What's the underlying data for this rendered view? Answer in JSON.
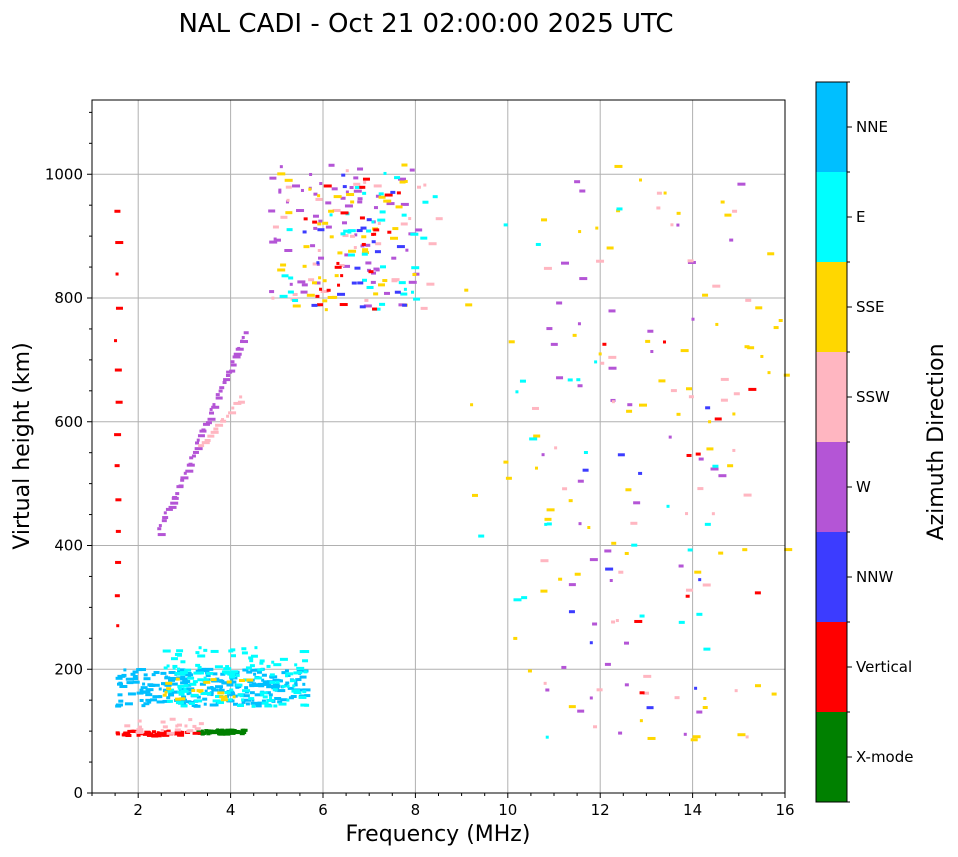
{
  "chart_data": {
    "type": "scatter",
    "title": "NAL CADI - Oct 21 02:00:00 2025 UTC",
    "xlabel": "Frequency (MHz)",
    "ylabel": "Virtual height (km)",
    "xlim": [
      1,
      16
    ],
    "ylim": [
      0,
      1120
    ],
    "xticks": [
      2,
      4,
      6,
      8,
      10,
      12,
      14,
      16
    ],
    "yticks": [
      0,
      200,
      400,
      600,
      800,
      1000
    ],
    "grid": true,
    "colorbar": {
      "title": "Azimuth Direction",
      "categories": [
        {
          "name": "X-mode",
          "color": "#008000"
        },
        {
          "name": "Vertical",
          "color": "#ff0000"
        },
        {
          "name": "NNW",
          "color": "#3c3cff"
        },
        {
          "name": "W",
          "color": "#b455d6"
        },
        {
          "name": "SSW",
          "color": "#ffb6c1"
        },
        {
          "name": "SSE",
          "color": "#ffd700"
        },
        {
          "name": "E",
          "color": "#00ffff"
        },
        {
          "name": "NNE",
          "color": "#00bfff"
        }
      ]
    },
    "regions": [
      {
        "name": "E-layer X-mode",
        "direction": "X-mode",
        "x": [
          3.2,
          4.3
        ],
        "y": [
          95,
          102
        ],
        "count": 60
      },
      {
        "name": "E-layer vertical",
        "direction": "Vertical",
        "x": [
          1.5,
          3.2
        ],
        "y": [
          92,
          100
        ],
        "count": 50
      },
      {
        "name": "E-layer mixed",
        "direction": "SSW",
        "x": [
          1.6,
          3.4
        ],
        "y": [
          95,
          120
        ],
        "count": 20
      },
      {
        "name": "F-layer trace NNE",
        "direction": "NNE",
        "x": [
          1.5,
          5.6
        ],
        "y": [
          140,
          200
        ],
        "count": 240
      },
      {
        "name": "F-layer trace E",
        "direction": "E",
        "x": [
          2.5,
          5.6
        ],
        "y": [
          140,
          235
        ],
        "count": 130
      },
      {
        "name": "F-layer mixed",
        "direction": "SSE",
        "x": [
          2.5,
          4.5
        ],
        "y": [
          150,
          195
        ],
        "count": 20
      },
      {
        "name": "Spread F W",
        "direction": "W",
        "x": [
          4.8,
          8
        ],
        "y": [
          780,
          1015
        ],
        "count": 70
      },
      {
        "name": "Spread F SSW",
        "direction": "SSW",
        "x": [
          4.8,
          8.6
        ],
        "y": [
          780,
          1015
        ],
        "count": 35
      },
      {
        "name": "Spread F SSE",
        "direction": "SSE",
        "x": [
          5,
          8
        ],
        "y": [
          780,
          1015
        ],
        "count": 45
      },
      {
        "name": "Spread F E",
        "direction": "E",
        "x": [
          5,
          8.4
        ],
        "y": [
          780,
          1015
        ],
        "count": 40
      },
      {
        "name": "Spread F Vertical",
        "direction": "Vertical",
        "x": [
          5.5,
          7.8
        ],
        "y": [
          780,
          1000
        ],
        "count": 25
      },
      {
        "name": "Spread F NNW",
        "direction": "NNW",
        "x": [
          5.5,
          7.8
        ],
        "y": [
          780,
          1000
        ],
        "count": 20
      },
      {
        "name": "Scattered high freq SSE",
        "direction": "SSE",
        "x": [
          8.8,
          16
        ],
        "y": [
          80,
          1020
        ],
        "count": 70
      },
      {
        "name": "Scattered high freq W",
        "direction": "W",
        "x": [
          10.5,
          15
        ],
        "y": [
          80,
          1000
        ],
        "count": 45
      },
      {
        "name": "Scattered high freq SSW",
        "direction": "SSW",
        "x": [
          10.5,
          15.2
        ],
        "y": [
          80,
          1000
        ],
        "count": 40
      },
      {
        "name": "Scattered high freq E",
        "direction": "E",
        "x": [
          9.3,
          15
        ],
        "y": [
          80,
          950
        ],
        "count": 25
      },
      {
        "name": "Scattered high freq Vertical",
        "direction": "Vertical",
        "x": [
          12,
          16
        ],
        "y": [
          100,
          960
        ],
        "count": 10
      },
      {
        "name": "Scattered high freq NNW",
        "direction": "NNW",
        "x": [
          11,
          14.5
        ],
        "y": [
          100,
          640
        ],
        "count": 10
      }
    ],
    "traces": [
      {
        "name": "Oblique trace",
        "direction": "W",
        "from": [
          2.4,
          420
        ],
        "to": [
          4.3,
          745
        ],
        "count": 55
      },
      {
        "name": "Oblique trace SSW",
        "direction": "SSW",
        "from": [
          3.3,
          560
        ],
        "to": [
          4.2,
          640
        ],
        "count": 15
      },
      {
        "name": "Lower-left vertical column",
        "direction": "Vertical",
        "from": [
          1.5,
          270
        ],
        "to": [
          1.5,
          940
        ],
        "count": 14
      }
    ]
  }
}
